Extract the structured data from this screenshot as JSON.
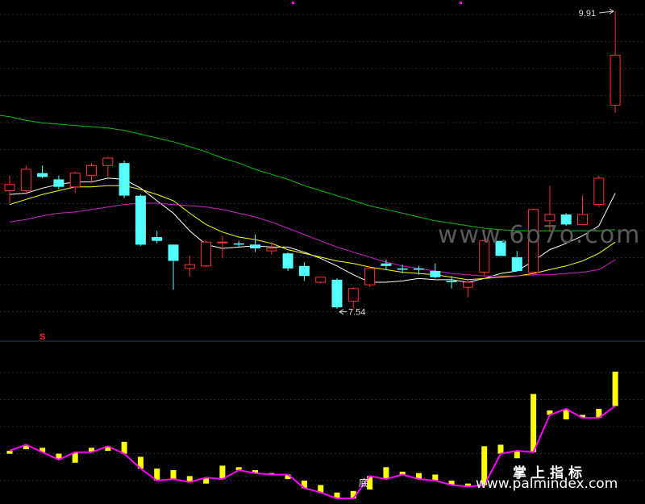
{
  "chart_data": [
    {
      "type": "candlestick",
      "ylim": [
        7.3,
        10.0
      ],
      "grid": true,
      "candles": [
        {
          "o": 8.48,
          "h": 8.6,
          "l": 8.38,
          "c": 8.53
        },
        {
          "o": 8.48,
          "h": 8.68,
          "l": 8.45,
          "c": 8.65
        },
        {
          "o": 8.62,
          "h": 8.68,
          "l": 8.58,
          "c": 8.59
        },
        {
          "o": 8.57,
          "h": 8.6,
          "l": 8.49,
          "c": 8.51
        },
        {
          "o": 8.51,
          "h": 8.63,
          "l": 8.46,
          "c": 8.62
        },
        {
          "o": 8.6,
          "h": 8.7,
          "l": 8.54,
          "c": 8.68
        },
        {
          "o": 8.68,
          "h": 8.75,
          "l": 8.59,
          "c": 8.74
        },
        {
          "o": 8.7,
          "h": 8.72,
          "l": 8.42,
          "c": 8.44
        },
        {
          "o": 8.44,
          "h": 8.45,
          "l": 8.04,
          "c": 8.05
        },
        {
          "o": 8.11,
          "h": 8.16,
          "l": 8.06,
          "c": 8.08
        },
        {
          "o": 8.05,
          "h": 8.05,
          "l": 7.69,
          "c": 7.92
        },
        {
          "o": 7.86,
          "h": 7.96,
          "l": 7.8,
          "c": 7.89
        },
        {
          "o": 7.88,
          "h": 8.08,
          "l": 7.87,
          "c": 8.07
        },
        {
          "o": 8.07,
          "h": 8.12,
          "l": 7.94,
          "c": 8.07
        },
        {
          "o": 8.06,
          "h": 8.08,
          "l": 8.03,
          "c": 8.05
        },
        {
          "o": 8.05,
          "h": 8.13,
          "l": 7.99,
          "c": 8.02
        },
        {
          "o": 8.0,
          "h": 8.07,
          "l": 7.97,
          "c": 8.02
        },
        {
          "o": 7.98,
          "h": 7.99,
          "l": 7.84,
          "c": 7.86
        },
        {
          "o": 7.88,
          "h": 7.91,
          "l": 7.76,
          "c": 7.8
        },
        {
          "o": 7.75,
          "h": 7.79,
          "l": 7.74,
          "c": 7.79
        },
        {
          "o": 7.77,
          "h": 7.78,
          "l": 7.54,
          "c": 7.55
        },
        {
          "o": 7.6,
          "h": 7.71,
          "l": 7.54,
          "c": 7.7
        },
        {
          "o": 7.73,
          "h": 7.88,
          "l": 7.71,
          "c": 7.86
        },
        {
          "o": 7.9,
          "h": 7.93,
          "l": 7.85,
          "c": 7.88
        },
        {
          "o": 7.86,
          "h": 7.89,
          "l": 7.82,
          "c": 7.85
        },
        {
          "o": 7.86,
          "h": 7.88,
          "l": 7.81,
          "c": 7.85
        },
        {
          "o": 7.84,
          "h": 7.9,
          "l": 7.78,
          "c": 7.79
        },
        {
          "o": 7.76,
          "h": 7.8,
          "l": 7.7,
          "c": 7.75
        },
        {
          "o": 7.71,
          "h": 7.77,
          "l": 7.63,
          "c": 7.75
        },
        {
          "o": 7.83,
          "h": 8.17,
          "l": 7.8,
          "c": 8.08
        },
        {
          "o": 8.08,
          "h": 8.08,
          "l": 7.96,
          "c": 7.96
        },
        {
          "o": 7.95,
          "h": 8.0,
          "l": 7.84,
          "c": 7.84
        },
        {
          "o": 7.83,
          "h": 8.34,
          "l": 7.8,
          "c": 8.33
        },
        {
          "o": 8.24,
          "h": 8.52,
          "l": 8.15,
          "c": 8.29
        },
        {
          "o": 8.29,
          "h": 8.3,
          "l": 8.2,
          "c": 8.21
        },
        {
          "o": 8.21,
          "h": 8.44,
          "l": 8.21,
          "c": 8.29
        },
        {
          "o": 8.37,
          "h": 8.6,
          "l": 8.35,
          "c": 8.58
        },
        {
          "o": 9.16,
          "h": 9.91,
          "l": 9.1,
          "c": 9.56
        }
      ],
      "ma": [
        {
          "color": "#ffffff",
          "values": [
            8.45,
            8.46,
            8.5,
            8.53,
            8.55,
            8.55,
            8.58,
            8.57,
            8.5,
            8.4,
            8.3,
            8.16,
            8.05,
            8.02,
            8.03,
            8.04,
            8.03,
            8.03,
            7.99,
            7.94,
            7.88,
            7.81,
            7.75,
            7.75,
            7.76,
            7.78,
            7.77,
            7.77,
            7.75,
            7.78,
            7.82,
            7.84,
            7.92,
            8.01,
            8.06,
            8.12,
            8.2,
            8.46
          ]
        },
        {
          "color": "#ffff00",
          "values": [
            8.37,
            8.41,
            8.45,
            8.48,
            8.51,
            8.51,
            8.52,
            8.52,
            8.49,
            8.45,
            8.4,
            8.3,
            8.21,
            8.15,
            8.11,
            8.09,
            8.06,
            8.01,
            7.98,
            7.95,
            7.92,
            7.9,
            7.87,
            7.85,
            7.83,
            7.82,
            7.81,
            7.79,
            7.77,
            7.78,
            7.79,
            7.8,
            7.82,
            7.85,
            7.88,
            7.92,
            7.98,
            8.07
          ]
        },
        {
          "color": "#d020d0",
          "values": [
            8.23,
            8.25,
            8.28,
            8.3,
            8.31,
            8.33,
            8.35,
            8.37,
            8.38,
            8.38,
            8.37,
            8.36,
            8.35,
            8.33,
            8.3,
            8.27,
            8.23,
            8.18,
            8.13,
            8.08,
            8.03,
            7.99,
            7.95,
            7.91,
            7.88,
            7.86,
            7.84,
            7.82,
            7.81,
            7.8,
            7.8,
            7.8,
            7.81,
            7.81,
            7.82,
            7.83,
            7.85,
            7.93
          ]
        },
        {
          "color": "#00c000",
          "values": [
            9.07,
            9.04,
            9.02,
            9.01,
            9.0,
            8.99,
            8.98,
            8.96,
            8.93,
            8.9,
            8.87,
            8.83,
            8.79,
            8.74,
            8.7,
            8.65,
            8.61,
            8.57,
            8.52,
            8.48,
            8.44,
            8.4,
            8.36,
            8.33,
            8.3,
            8.27,
            8.24,
            8.22,
            8.2,
            8.18,
            8.17,
            8.16,
            8.16,
            8.16,
            8.16,
            8.16,
            8.16,
            8.17
          ]
        }
      ],
      "annotations": [
        {
          "text": "9.91",
          "candle": 37,
          "value": 9.91,
          "side": "left"
        },
        {
          "text": "7.54",
          "candle": 20,
          "value": 7.54,
          "side": "right"
        }
      ],
      "signal_mark": {
        "text": "S",
        "color": "#ff2020"
      }
    },
    {
      "type": "bar+line",
      "ylim": [
        0,
        100
      ],
      "bar_color": "#ffff00",
      "line_color": "#ff00ff",
      "bars": [
        {
          "a": 31,
          "b": 33
        },
        {
          "a": 34,
          "b": 37
        },
        {
          "a": 35,
          "b": 32
        },
        {
          "a": 31,
          "b": 27
        },
        {
          "a": 25,
          "b": 32
        },
        {
          "a": 35,
          "b": 32
        },
        {
          "a": 33,
          "b": 36
        },
        {
          "a": 39,
          "b": 31
        },
        {
          "a": 29,
          "b": 21
        },
        {
          "a": 21,
          "b": 13
        },
        {
          "a": 20,
          "b": 14
        },
        {
          "a": 16,
          "b": 12
        },
        {
          "a": 11,
          "b": 15
        },
        {
          "a": 23,
          "b": 14
        },
        {
          "a": 22,
          "b": 20
        },
        {
          "a": 20,
          "b": 18
        },
        {
          "a": 18,
          "b": 17
        },
        {
          "a": 14,
          "b": 17
        },
        {
          "a": 13,
          "b": 8
        },
        {
          "a": 10,
          "b": 5
        },
        {
          "a": 5,
          "b": 1
        },
        {
          "a": 6,
          "b": 1
        },
        {
          "a": 7,
          "b": 16
        },
        {
          "a": 22,
          "b": 14
        },
        {
          "a": 19,
          "b": 17
        },
        {
          "a": 18,
          "b": 14
        },
        {
          "a": 17,
          "b": 13
        },
        {
          "a": 13,
          "b": 10
        },
        {
          "a": 11,
          "b": 9
        },
        {
          "a": 36,
          "b": 10
        },
        {
          "a": 37,
          "b": 31
        },
        {
          "a": 28,
          "b": 33
        },
        {
          "a": 71,
          "b": 32
        },
        {
          "a": 60,
          "b": 57
        },
        {
          "a": 54,
          "b": 61
        },
        {
          "a": 57,
          "b": 55
        },
        {
          "a": 61,
          "b": 55
        },
        {
          "a": 86,
          "b": 63
        }
      ],
      "marker_text": "底"
    }
  ],
  "watermark": {
    "grey": "www.6o7o.com",
    "cn": "掌上指标",
    "url": "www.palmindex.com"
  }
}
